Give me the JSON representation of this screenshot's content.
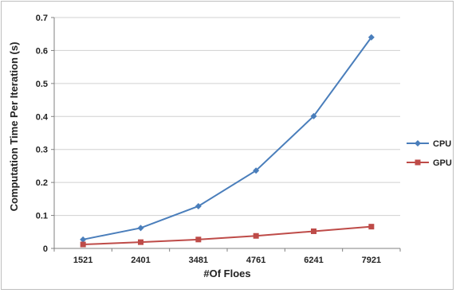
{
  "chart_data": {
    "type": "line",
    "xlabel": "#Of Floes",
    "ylabel": "Computation Time Per Iteration (s)",
    "categories": [
      "1521",
      "2401",
      "3481",
      "4761",
      "6241",
      "7921"
    ],
    "ylim": [
      0,
      0.7
    ],
    "yticks": [
      "0",
      "0.1",
      "0.2",
      "0.3",
      "0.4",
      "0.5",
      "0.6",
      "0.7"
    ],
    "grid": true,
    "legend_position": "right",
    "series": [
      {
        "name": "CPU",
        "color": "#4a7ebb",
        "marker": "diamond",
        "values": [
          0.027,
          0.062,
          0.128,
          0.236,
          0.401,
          0.64
        ]
      },
      {
        "name": "GPU",
        "color": "#be4b48",
        "marker": "square",
        "values": [
          0.012,
          0.019,
          0.027,
          0.038,
          0.052,
          0.066
        ]
      }
    ]
  }
}
